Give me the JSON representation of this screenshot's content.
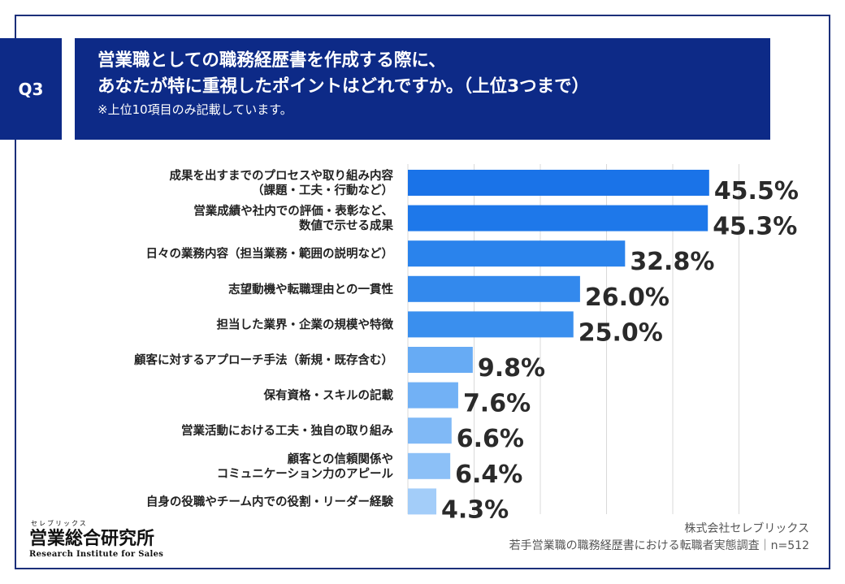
{
  "question_tag": "Q3",
  "header": {
    "line1": "営業職としての職務経歴書を作成する際に、",
    "line2": "あなたが特に重視したポイントはどれですか。（上位3つまで）",
    "note": "※上位10項目のみ記載しています。"
  },
  "chart_data": {
    "type": "bar",
    "orientation": "horizontal",
    "grid": true,
    "categories": [
      [
        "成果を出すまでのプロセスや取り組み内容",
        "（課題・工夫・行動など）"
      ],
      [
        "営業成績や社内での評価・表彰など、",
        "数値で示せる成果"
      ],
      [
        "日々の業務内容（担当業務・範囲の説明など）"
      ],
      [
        "志望動機や転職理由との一貫性"
      ],
      [
        "担当した業界・企業の規模や特徴"
      ],
      [
        "顧客に対するアプローチ手法（新規・既存含む）"
      ],
      [
        "保有資格・スキルの記載"
      ],
      [
        "営業活動における工夫・独自の取り組み"
      ],
      [
        "顧客との信頼関係や",
        "コミュニケーション力のアピール"
      ],
      [
        "自身の役職やチーム内での役割・リーダー経験"
      ]
    ],
    "values": [
      45.5,
      45.3,
      32.8,
      26.0,
      25.0,
      9.8,
      7.6,
      6.6,
      6.4,
      4.3
    ],
    "value_labels": [
      "45.5%",
      "45.3%",
      "32.8%",
      "26.0%",
      "25.0%",
      "9.8%",
      "7.6%",
      "6.6%",
      "6.4%",
      "4.3%"
    ],
    "bar_colors": [
      "#1a73e8",
      "#1e78ea",
      "#2a83ec",
      "#3389ed",
      "#3a8fee",
      "#67abf4",
      "#72b1f5",
      "#80b9f6",
      "#8cc0f7",
      "#a3cdf9"
    ]
  },
  "logo": {
    "kana": "セレブリックス",
    "name": "営業総合研究所",
    "en": "Research Institute for Sales"
  },
  "source": {
    "line1": "株式会社セレブリックス",
    "line2": "若手営業職の職務経歴書における転職者実態調査｜n=512"
  }
}
